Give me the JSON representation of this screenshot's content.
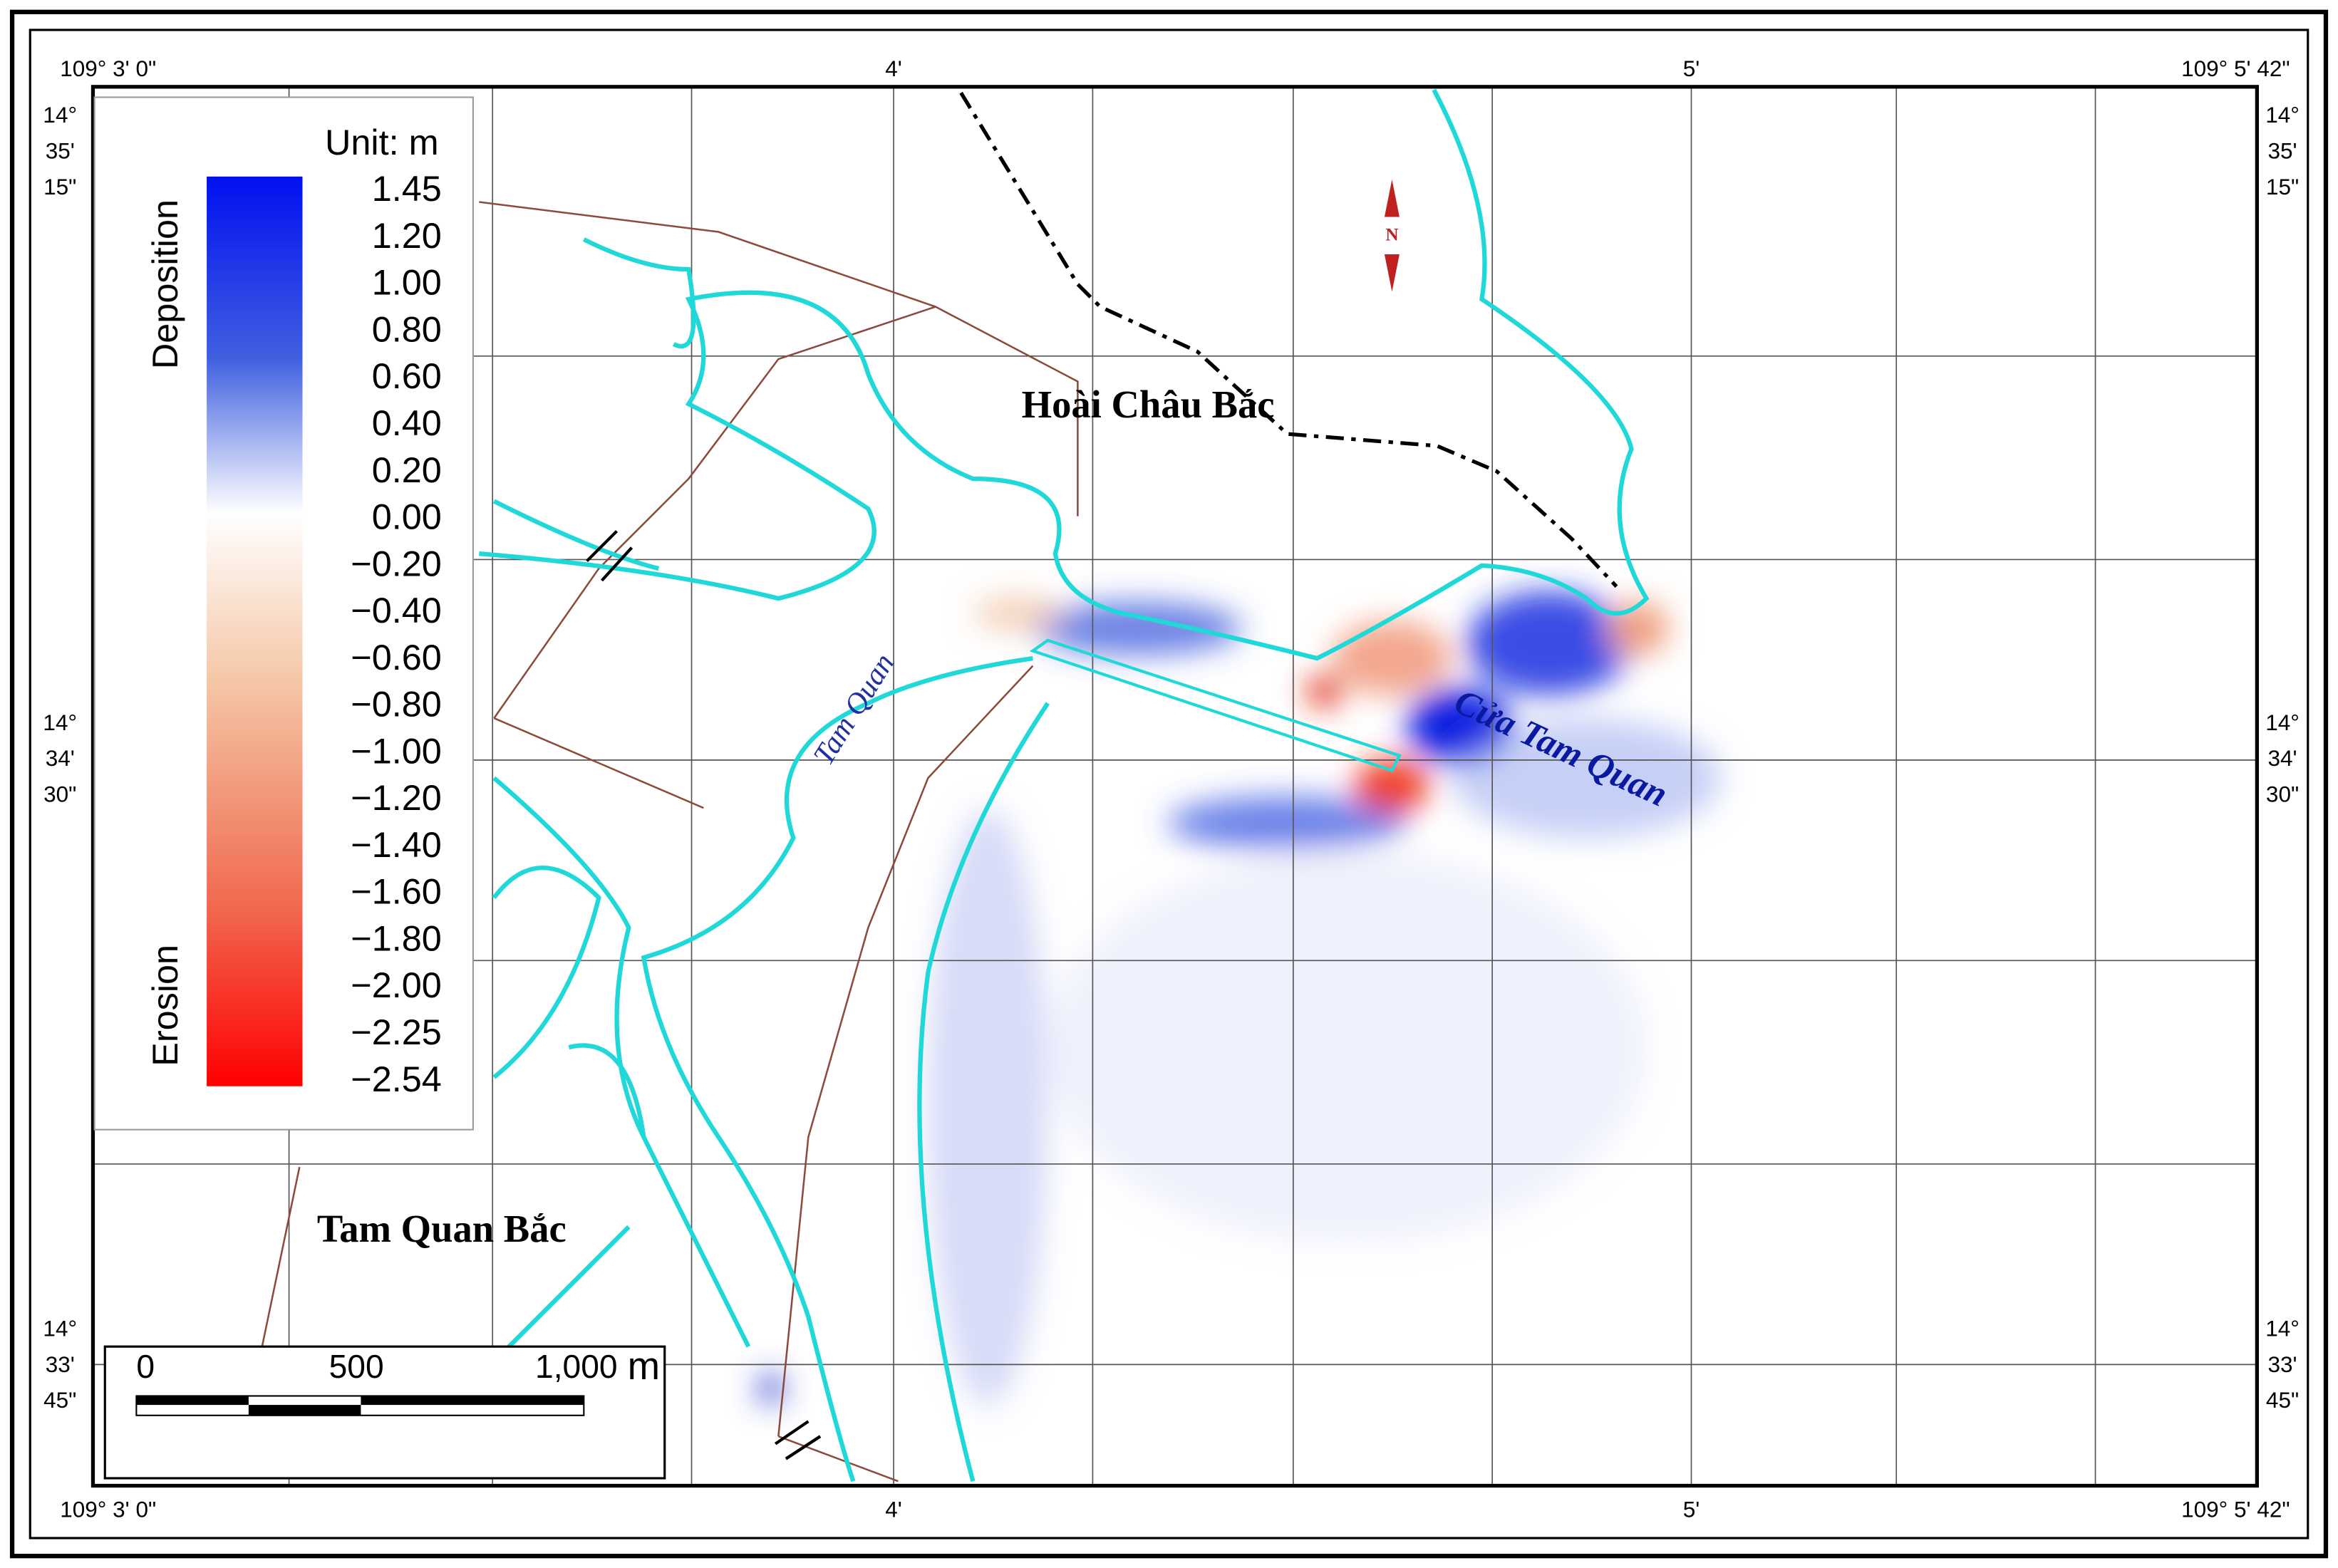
{
  "frame": {
    "top_lon": [
      "109° 3' 0\"",
      "4'",
      "5'",
      "109° 5' 42\""
    ],
    "bottom_lon": [
      "109° 3' 0\"",
      "4'",
      "5'",
      "109° 5' 42\""
    ],
    "left_lat": [
      [
        "14°",
        "35'",
        "15\""
      ],
      [
        "14°",
        "34'",
        "30\""
      ],
      [
        "14°",
        "33'",
        "45\""
      ]
    ],
    "right_lat": [
      [
        "14°",
        "35'",
        "15\""
      ],
      [
        "14°",
        "34'",
        "30\""
      ],
      [
        "14°",
        "33'",
        "45\""
      ]
    ]
  },
  "legend": {
    "unit": "Unit: m",
    "deposition": "Deposition",
    "erosion": "Erosion",
    "labels": [
      "1.45",
      "1.20",
      "1.00",
      "0.80",
      "0.60",
      "0.40",
      "0.20",
      "0.00",
      "−0.20",
      "−0.40",
      "−0.60",
      "−0.80",
      "−1.00",
      "−1.20",
      "−1.40",
      "−1.60",
      "−1.80",
      "−2.00",
      "−2.25",
      "−2.54"
    ]
  },
  "places": {
    "hoai_chau_bac": "Hoài Châu Bắc",
    "tam_quan_bac": "Tam Quan Bắc",
    "tam_quan_river": "Tam Quan",
    "cua_tam_quan": "Cửa Tam Quan"
  },
  "north": "N",
  "scale_bar": {
    "labels": [
      "0",
      "500",
      "1,000"
    ],
    "unit": "m"
  }
}
